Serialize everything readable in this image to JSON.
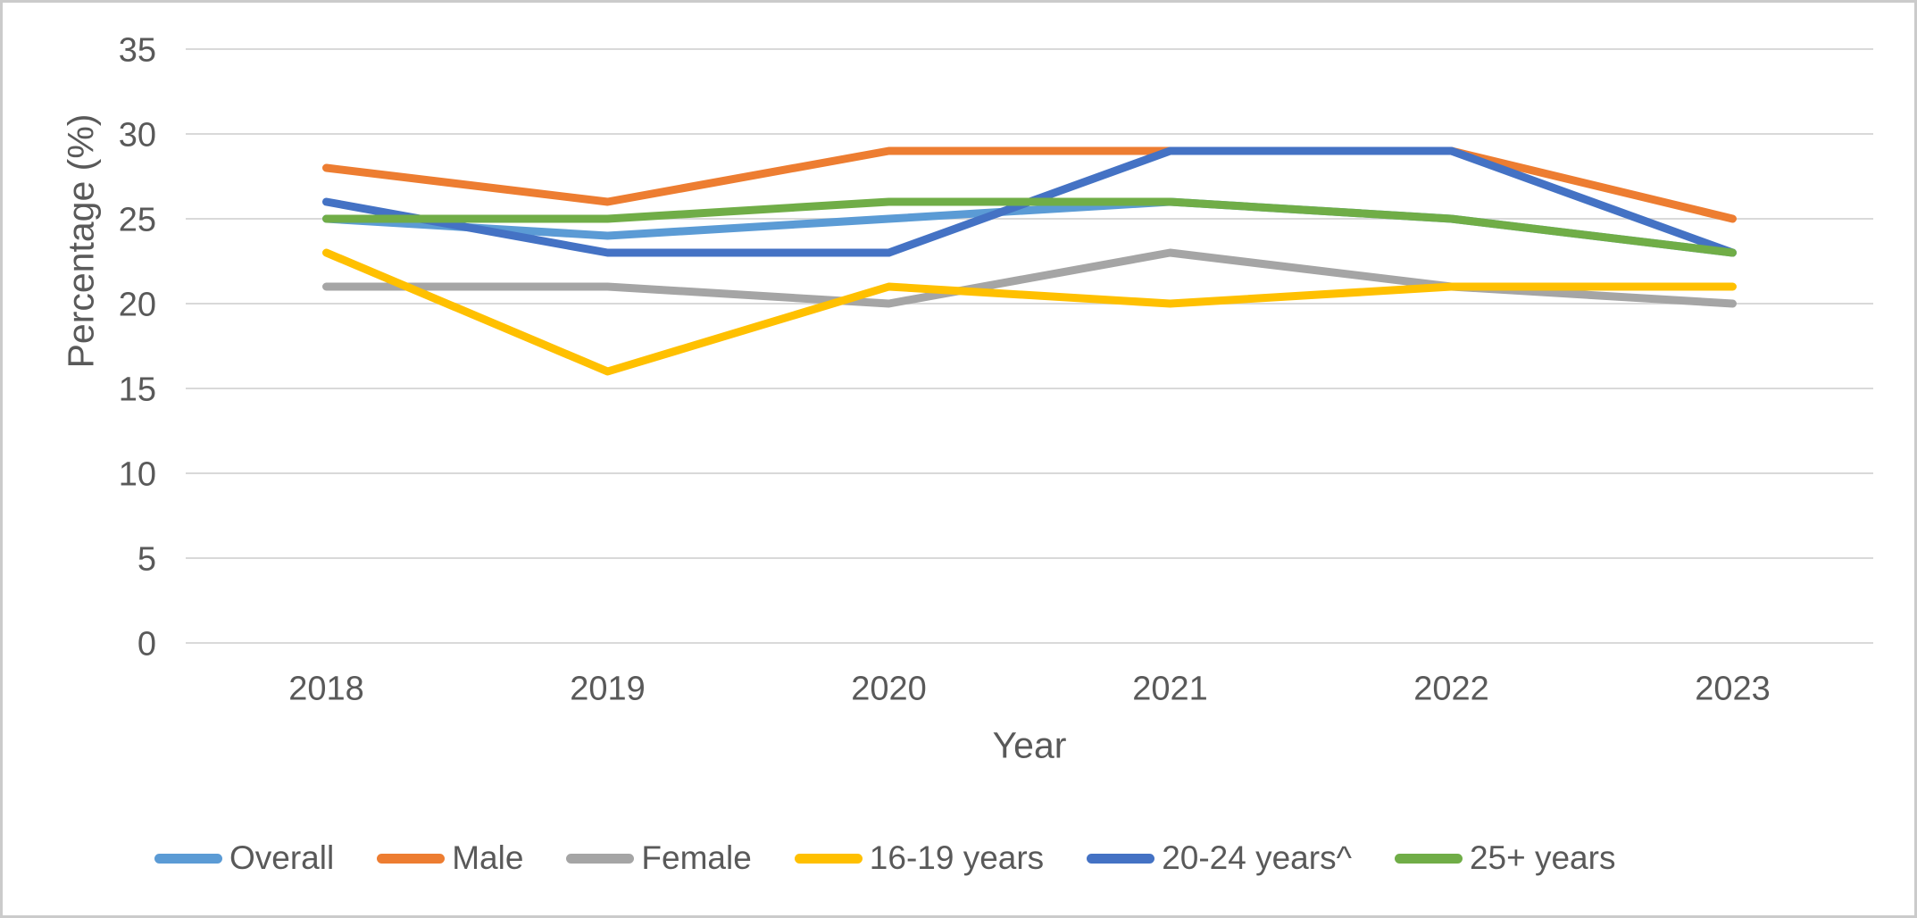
{
  "chart_data": {
    "type": "line",
    "title": "",
    "xlabel": "Year",
    "ylabel": "Percentage (%)",
    "categories": [
      "2018",
      "2019",
      "2020",
      "2021",
      "2022",
      "2023"
    ],
    "yticks": [
      0,
      5,
      10,
      15,
      20,
      25,
      30,
      35
    ],
    "ylim": [
      0,
      35
    ],
    "grid": true,
    "legend_position": "bottom",
    "series": [
      {
        "name": "Overall",
        "color": "#5B9BD5",
        "values": [
          25,
          24,
          25,
          26,
          25,
          23
        ]
      },
      {
        "name": "Male",
        "color": "#ED7D31",
        "values": [
          28,
          26,
          29,
          29,
          29,
          25
        ]
      },
      {
        "name": "Female",
        "color": "#A5A5A5",
        "values": [
          21,
          21,
          20,
          23,
          21,
          20
        ]
      },
      {
        "name": "16-19 years",
        "color": "#FFC000",
        "values": [
          23,
          16,
          21,
          20,
          21,
          21
        ]
      },
      {
        "name": "20-24 years^",
        "color": "#4472C4",
        "values": [
          26,
          23,
          23,
          29,
          29,
          23
        ]
      },
      {
        "name": "25+ years",
        "color": "#70AD47",
        "values": [
          25,
          25,
          26,
          26,
          25,
          23
        ]
      }
    ]
  },
  "colors": {
    "text": "#595959",
    "gridline": "#D9D9D9",
    "background": "#FFFFFF",
    "frame_border": "#CBCBCB"
  }
}
